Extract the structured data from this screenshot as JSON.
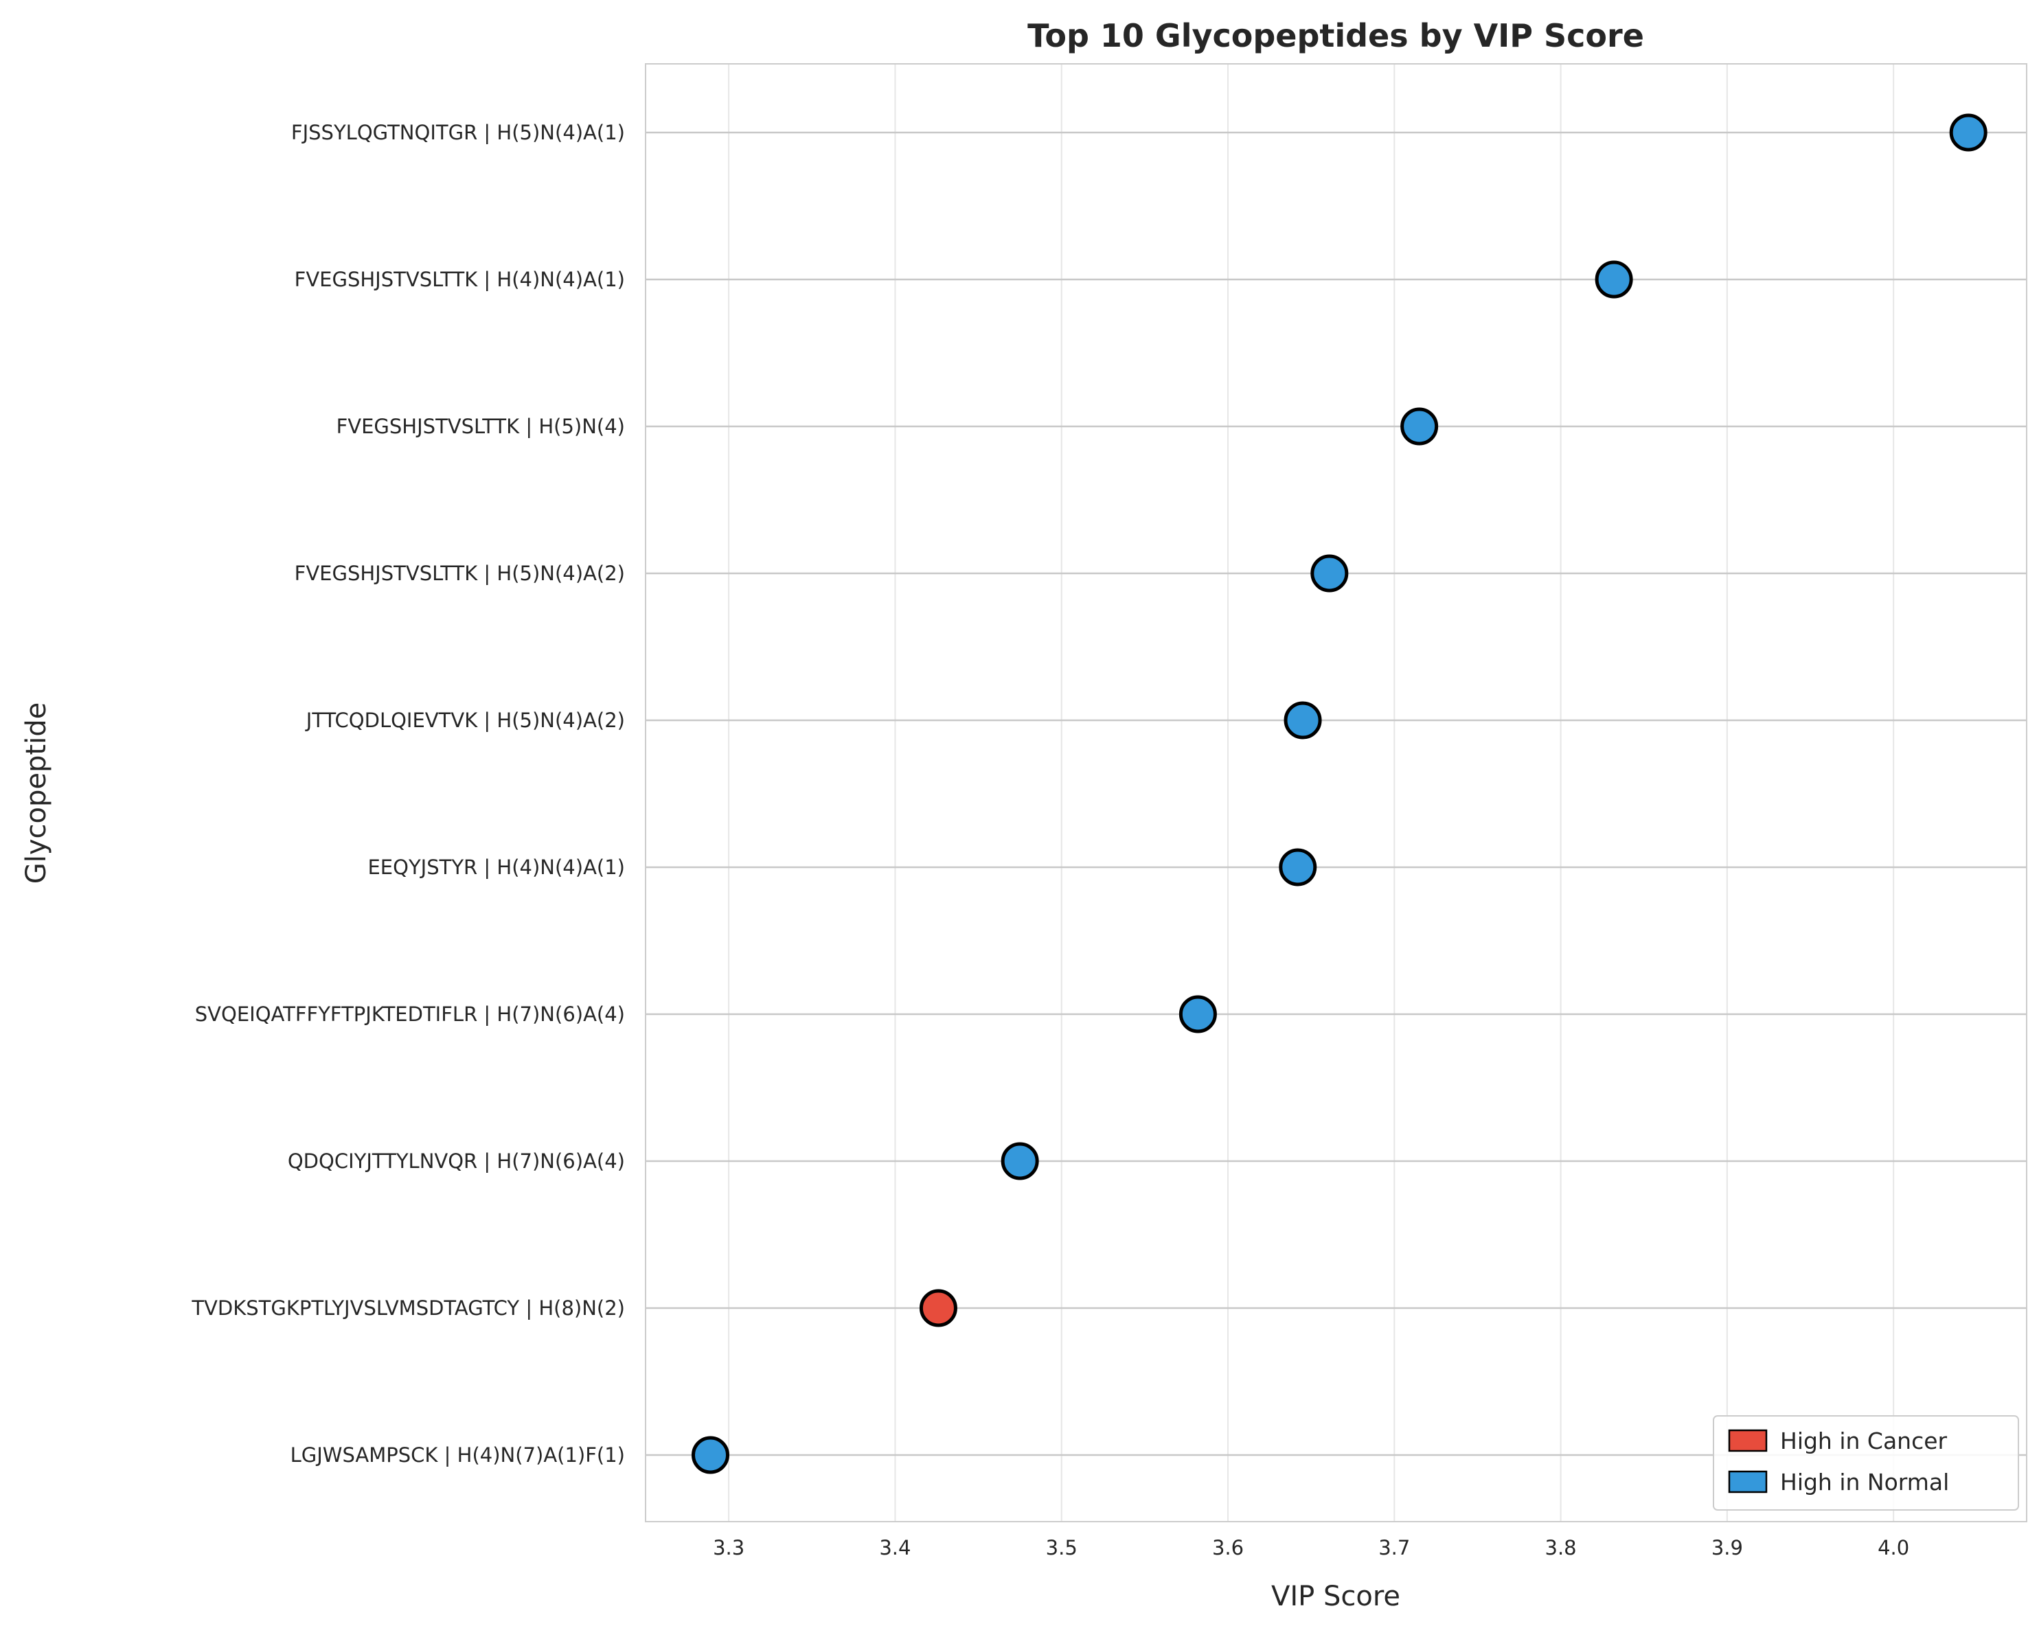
{
  "colors": {
    "cancer": "#e74c3c",
    "normal": "#3498db",
    "grid": "#e6e6e6",
    "hgrid": "#c8c8c8",
    "frame": "#cccccc",
    "marker_edge": "#000000"
  },
  "chart_data": {
    "type": "scatter",
    "orientation": "horizontal",
    "title": "Top 10 Glycopeptides by VIP Score",
    "xlabel": "VIP Score",
    "ylabel": "Glycopeptide",
    "xlim": [
      3.25,
      4.08
    ],
    "xticks": [
      3.3,
      3.4,
      3.5,
      3.6,
      3.7,
      3.8,
      3.9,
      4.0
    ],
    "xtick_labels": [
      "3.3",
      "3.4",
      "3.5",
      "3.6",
      "3.7",
      "3.8",
      "3.9",
      "4.0"
    ],
    "grid": true,
    "legend_position": "bottom-right",
    "legend": [
      {
        "label": "High in Cancer",
        "group": "cancer"
      },
      {
        "label": "High in Normal",
        "group": "normal"
      }
    ],
    "points": [
      {
        "label": "FJSSYLQGTNQITGR | H(5)N(4)A(1)",
        "value": 4.045,
        "group": "normal"
      },
      {
        "label": "FVEGSHJSTVSLTTK | H(4)N(4)A(1)",
        "value": 3.832,
        "group": "normal"
      },
      {
        "label": "FVEGSHJSTVSLTTK | H(5)N(4)",
        "value": 3.715,
        "group": "normal"
      },
      {
        "label": "FVEGSHJSTVSLTTK | H(5)N(4)A(2)",
        "value": 3.661,
        "group": "normal"
      },
      {
        "label": "JTTCQDLQIEVTVK | H(5)N(4)A(2)",
        "value": 3.645,
        "group": "normal"
      },
      {
        "label": "EEQYJSTYR | H(4)N(4)A(1)",
        "value": 3.642,
        "group": "normal"
      },
      {
        "label": "SVQEIQATFFYFTPJKTEDTIFLR | H(7)N(6)A(4)",
        "value": 3.582,
        "group": "normal"
      },
      {
        "label": "QDQCIYJTTYLNVQR | H(7)N(6)A(4)",
        "value": 3.475,
        "group": "normal"
      },
      {
        "label": "TVDKSTGKPTLYJVSLVMSDTAGTCY | H(8)N(2)",
        "value": 3.426,
        "group": "cancer"
      },
      {
        "label": "LGJWSAMPSCK | H(4)N(7)A(1)F(1)",
        "value": 3.289,
        "group": "normal"
      }
    ]
  }
}
